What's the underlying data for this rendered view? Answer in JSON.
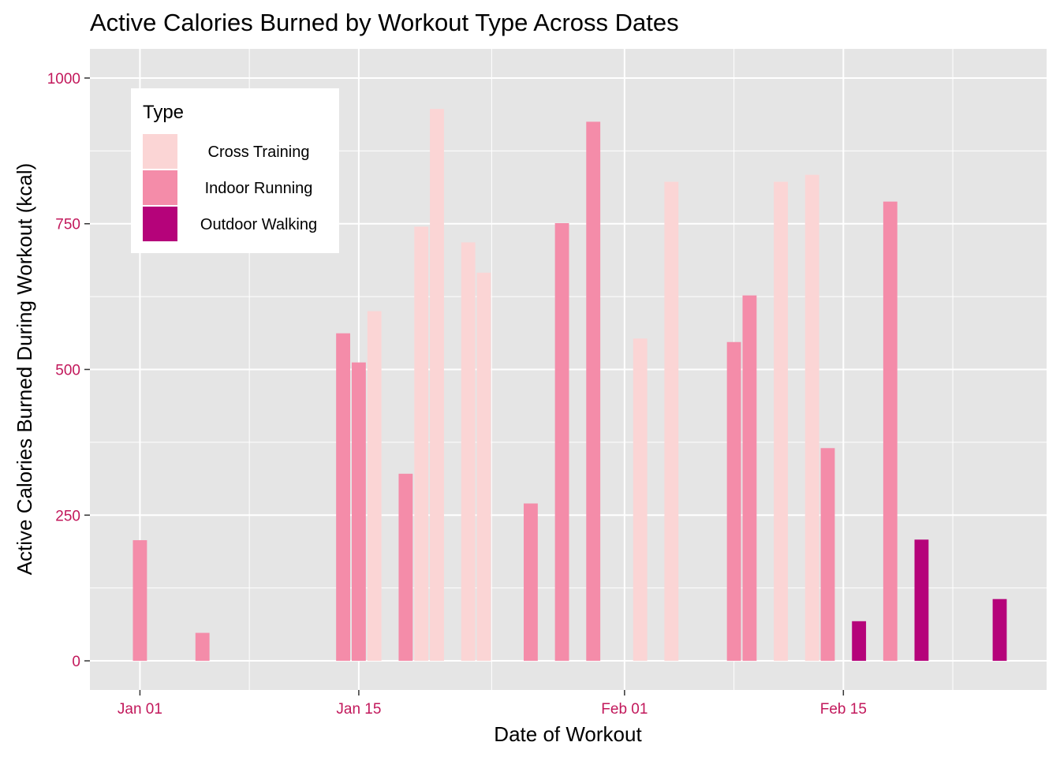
{
  "chart_data": {
    "type": "bar",
    "title": "Active Calories Burned by Workout Type Across Dates",
    "xlabel": "Date of Workout",
    "ylabel": "Active Calories Burned During Workout (kcal)",
    "x_ticks": [
      {
        "day": 0,
        "label": "Jan 01"
      },
      {
        "day": 14,
        "label": "Jan 15"
      },
      {
        "day": 31,
        "label": "Feb 01"
      },
      {
        "day": 45,
        "label": "Feb 15"
      }
    ],
    "y_ticks": [
      {
        "value": 0,
        "label": "0"
      },
      {
        "value": 250,
        "label": "250"
      },
      {
        "value": 500,
        "label": "500"
      },
      {
        "value": 750,
        "label": "750"
      },
      {
        "value": 1000,
        "label": "1000"
      }
    ],
    "ylim": [
      -50,
      1050
    ],
    "xlim_days": [
      -3.2,
      58
    ],
    "legend": {
      "title": "Type",
      "position": "top-left",
      "entries": [
        {
          "name": "Cross Training",
          "color": "#fbd5d5"
        },
        {
          "name": "Indoor Running",
          "color": "#f48ca9"
        },
        {
          "name": "Outdoor Walking",
          "color": "#b5037a"
        }
      ]
    },
    "series": [
      {
        "name": "Cross Training",
        "color": "#fbd5d5",
        "points": [
          {
            "date": "Jan 16",
            "day": 15,
            "value": 600
          },
          {
            "date": "Jan 19",
            "day": 18,
            "value": 745
          },
          {
            "date": "Jan 20",
            "day": 19,
            "value": 947
          },
          {
            "date": "Jan 22",
            "day": 21,
            "value": 718
          },
          {
            "date": "Jan 23",
            "day": 22,
            "value": 666
          },
          {
            "date": "Feb 02",
            "day": 32,
            "value": 553
          },
          {
            "date": "Feb 04",
            "day": 34,
            "value": 822
          },
          {
            "date": "Feb 11",
            "day": 41,
            "value": 822
          },
          {
            "date": "Feb 13",
            "day": 43,
            "value": 834
          }
        ]
      },
      {
        "name": "Indoor Running",
        "color": "#f48ca9",
        "points": [
          {
            "date": "Jan 01",
            "day": 0,
            "value": 207
          },
          {
            "date": "Jan 05",
            "day": 4,
            "value": 48
          },
          {
            "date": "Jan 14",
            "day": 13,
            "value": 562
          },
          {
            "date": "Jan 15",
            "day": 14,
            "value": 512
          },
          {
            "date": "Jan 18",
            "day": 17,
            "value": 321
          },
          {
            "date": "Jan 26",
            "day": 25,
            "value": 270
          },
          {
            "date": "Jan 28",
            "day": 27,
            "value": 751
          },
          {
            "date": "Jan 30",
            "day": 29,
            "value": 925
          },
          {
            "date": "Feb 08",
            "day": 38,
            "value": 547
          },
          {
            "date": "Feb 09",
            "day": 39,
            "value": 627
          },
          {
            "date": "Feb 14",
            "day": 44,
            "value": 365
          },
          {
            "date": "Feb 18",
            "day": 48,
            "value": 788
          }
        ]
      },
      {
        "name": "Outdoor Walking",
        "color": "#b5037a",
        "points": [
          {
            "date": "Feb 16",
            "day": 46,
            "value": 68
          },
          {
            "date": "Feb 20",
            "day": 50,
            "value": 208
          },
          {
            "date": "Feb 25",
            "day": 55,
            "value": 106
          }
        ]
      }
    ]
  },
  "colors": {
    "panel": "#e5e5e5",
    "grid": "#ffffff",
    "tick_label": "#c2185b",
    "text": "#000000"
  }
}
